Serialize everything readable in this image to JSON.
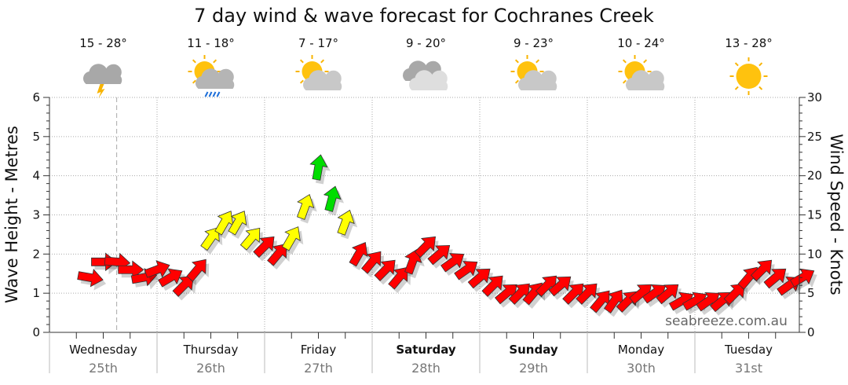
{
  "chart_data": {
    "type": "line",
    "title": "7 day wind & wave forecast for Cochranes Creek",
    "ylabel": "Wave Height - Metres",
    "y2label": "Wind Speed - Knots",
    "ylim": [
      0,
      6
    ],
    "y2lim": [
      0,
      30
    ],
    "yticks": [
      "0",
      "1",
      "2",
      "3",
      "4",
      "5",
      "6"
    ],
    "y2ticks": [
      "0",
      "5",
      "10",
      "15",
      "20",
      "25",
      "30"
    ],
    "grid": true,
    "watermark": "seabreeze.com.au",
    "days": [
      {
        "name": "Wednesday",
        "date": "25th",
        "bold": false,
        "temp": "15 - 28°",
        "icon": "storm-icon"
      },
      {
        "name": "Thursday",
        "date": "26th",
        "bold": false,
        "temp": "11 - 18°",
        "icon": "sun-rain-icon"
      },
      {
        "name": "Friday",
        "date": "27th",
        "bold": false,
        "temp": "7 - 17°",
        "icon": "partly-cloudy-icon"
      },
      {
        "name": "Saturday",
        "date": "28th",
        "bold": true,
        "temp": "9 - 20°",
        "icon": "cloudy-icon"
      },
      {
        "name": "Sunday",
        "date": "29th",
        "bold": true,
        "temp": "9 - 23°",
        "icon": "partly-cloudy-icon"
      },
      {
        "name": "Monday",
        "date": "30th",
        "bold": false,
        "temp": "10 - 24°",
        "icon": "partly-cloudy-icon"
      },
      {
        "name": "Tuesday",
        "date": "31st",
        "bold": false,
        "temp": "13 - 28°",
        "icon": "sunny-icon"
      }
    ],
    "now_hour": 15,
    "wind_series": {
      "name": "Wind speed (knots)",
      "start_hour": 9,
      "step_hours": 3,
      "speed": [
        7,
        9,
        9,
        8,
        7,
        8,
        7,
        6,
        8,
        12,
        14,
        14,
        12,
        11,
        10,
        12,
        16,
        21,
        17,
        14,
        10,
        9,
        8,
        7,
        9,
        11,
        10,
        9,
        8,
        7,
        6,
        5,
        5,
        5,
        6,
        6,
        5,
        5,
        4,
        4,
        4,
        5,
        5,
        5,
        4,
        4,
        4,
        4,
        5,
        7,
        8,
        7,
        6,
        7
      ],
      "direction_deg": [
        100,
        90,
        95,
        90,
        80,
        70,
        60,
        45,
        40,
        35,
        30,
        30,
        40,
        45,
        40,
        30,
        20,
        10,
        15,
        20,
        30,
        40,
        45,
        40,
        20,
        45,
        50,
        55,
        55,
        50,
        45,
        50,
        45,
        40,
        45,
        50,
        45,
        45,
        40,
        35,
        45,
        50,
        55,
        50,
        60,
        60,
        55,
        50,
        45,
        40,
        45,
        50,
        55,
        60
      ]
    },
    "colors": {
      "calm": "#ff0000",
      "moderate": "#ffff00",
      "strong": "#00dd00",
      "grid": "#999999"
    }
  }
}
